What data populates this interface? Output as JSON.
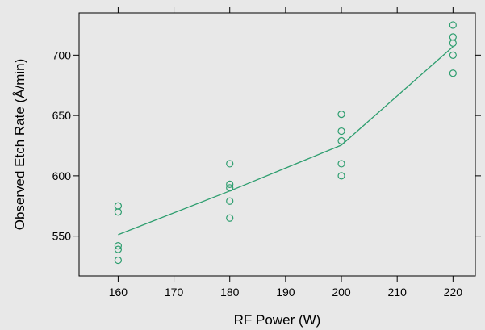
{
  "chart_data": {
    "type": "scatter",
    "xlabel": "RF Power (W)",
    "ylabel": "Observed Etch Rate (Å/min)",
    "xlim": [
      153,
      224
    ],
    "ylim": [
      517,
      735
    ],
    "x_ticks": [
      160,
      170,
      180,
      190,
      200,
      210,
      220
    ],
    "y_ticks": [
      550,
      600,
      650,
      700
    ],
    "grid": false,
    "colors": {
      "series": "#2e9e6f",
      "background": "#e8e8e8",
      "axis": "#000000"
    },
    "series": [
      {
        "type": "scatter",
        "points": [
          [
            160,
            575
          ],
          [
            160,
            570
          ],
          [
            160,
            542
          ],
          [
            160,
            539
          ],
          [
            160,
            530
          ],
          [
            180,
            610
          ],
          [
            180,
            593
          ],
          [
            180,
            590
          ],
          [
            180,
            579
          ],
          [
            180,
            565
          ],
          [
            200,
            651
          ],
          [
            200,
            637
          ],
          [
            200,
            629
          ],
          [
            200,
            610
          ],
          [
            200,
            600
          ],
          [
            220,
            725
          ],
          [
            220,
            715
          ],
          [
            220,
            710
          ],
          [
            220,
            700
          ],
          [
            220,
            685
          ]
        ]
      },
      {
        "type": "line",
        "points": [
          [
            160,
            551.2
          ],
          [
            180,
            587.4
          ],
          [
            200,
            625.4
          ],
          [
            220,
            707.0
          ]
        ]
      }
    ]
  }
}
